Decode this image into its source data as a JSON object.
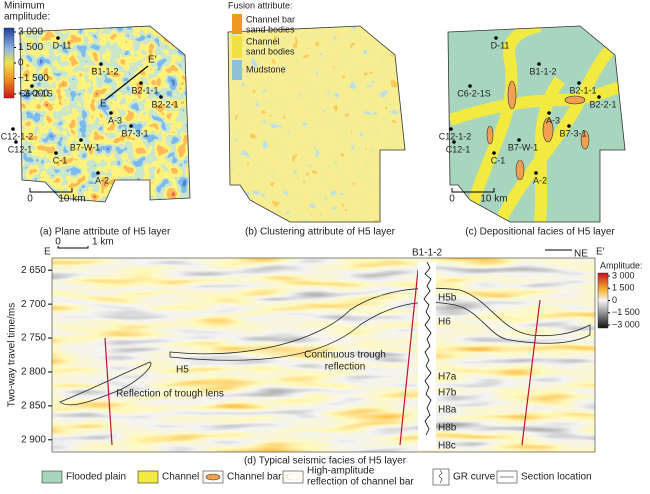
{
  "panel_a": {
    "caption": "(a) Plane attribute of H5 layer",
    "colorbar_title": [
      "Minimum",
      "amplitude:"
    ],
    "colorbar_ticks": [
      {
        "value": 3000,
        "label": "3 000"
      },
      {
        "value": 1500,
        "label": "1 500"
      },
      0,
      {
        "value": -1500,
        "label": "−1 500"
      },
      {
        "value": -3000,
        "label": "−3 000"
      }
    ],
    "wells": [
      "D-11",
      "C6-2-1S",
      "B1-1-2",
      "B2-1-1",
      "B2-2-1",
      "C12-1-2",
      "C12-1",
      "A-3",
      "B7-3-1",
      "B7-W-1",
      "C-1",
      "A-2"
    ],
    "section_ends": [
      "E",
      "E′"
    ],
    "scale": [
      "0",
      "10 km"
    ]
  },
  "panel_b": {
    "caption": "(b) Clustering attribute of H5 layer",
    "legend_title": "Fusion attribute:",
    "legend": [
      [
        "Channel bar",
        "sand bodies"
      ],
      [
        "Channel",
        "sand bodies"
      ],
      [
        "Mudstone"
      ]
    ]
  },
  "panel_c": {
    "caption": "(c) Depositional facies of H5 layer",
    "wells": [
      "D-11",
      "C6-2-1S",
      "B1-1-2",
      "B2-1-1",
      "B2-2-1",
      "C12-1-2",
      "C12-1",
      "A-3",
      "B7-3-1",
      "B7-W-1",
      "C-1",
      "A-2"
    ],
    "scale": [
      "0",
      "10 km"
    ]
  },
  "panel_d": {
    "caption": "(d) Typical seismic facies of H5 layer",
    "y_label": "Two-way travel time/ms",
    "ylim": [
      2632,
      2918
    ],
    "yticks": [
      {
        "value": 2650,
        "label": "2 650"
      },
      {
        "value": 2700,
        "label": "2 700"
      },
      {
        "value": 2750,
        "label": "2 750"
      },
      {
        "value": 2800,
        "label": "2 800"
      },
      {
        "value": 2850,
        "label": "2 850"
      },
      {
        "value": 2900,
        "label": "2 900"
      }
    ],
    "colorbar_title": "Amplitude:",
    "colorbar_ticks": [
      {
        "value": 3000,
        "label": "3 000"
      },
      {
        "value": 1500,
        "label": "1 500"
      },
      0,
      {
        "value": -1500,
        "label": "−1 500"
      },
      {
        "value": -3000,
        "label": "−3 000"
      }
    ],
    "section_ends": [
      "E",
      "E′"
    ],
    "direction": "NE",
    "scale": [
      "0",
      "1 km"
    ],
    "well": "B1-1-2",
    "horizons": [
      "H5b",
      "H6",
      "H7a",
      "H7b",
      "H8a",
      "H8b",
      "H8c"
    ],
    "h5": "H5",
    "annotations": [
      [
        "Continuous trough",
        "reflection"
      ],
      [
        "Reflection of trough lens"
      ]
    ]
  },
  "legend": [
    "Flooded plain",
    "Channel",
    "Channel bar",
    [
      "High-amplitude",
      "reflection of channel bar"
    ],
    "GR curve",
    "Section location"
  ]
}
